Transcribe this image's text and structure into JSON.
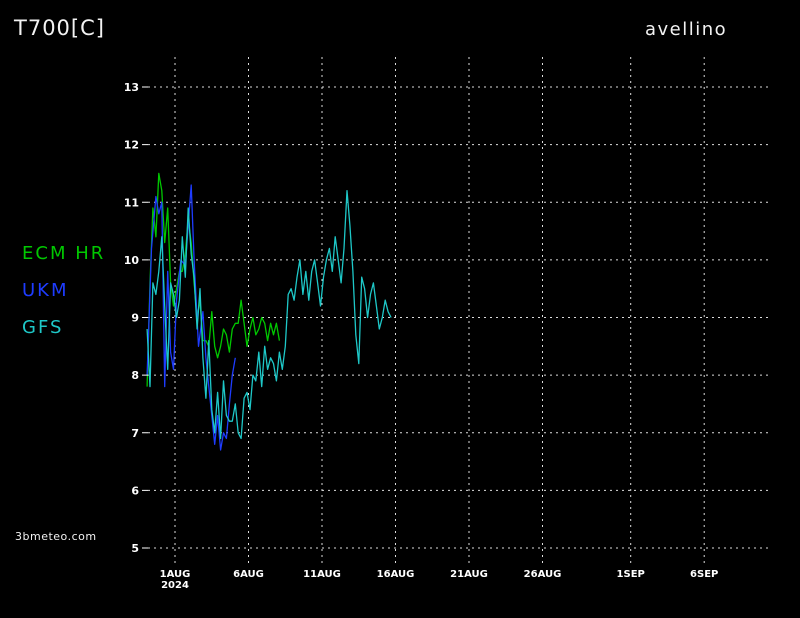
{
  "header": {
    "title": "T700[C]",
    "location": "avellino"
  },
  "footer": {
    "brand": "3bmeteo.com"
  },
  "legend": [
    {
      "label": "ECM  HR",
      "color": "#00c800"
    },
    {
      "label": "UKM",
      "color": "#1e3cff"
    },
    {
      "label": "GFS",
      "color": "#1ec8c8"
    }
  ],
  "chart_data": {
    "type": "line",
    "title": "T700[C]",
    "subtitle": "avellino",
    "ylabel": "",
    "xlabel": "",
    "ylim": [
      5,
      13
    ],
    "y_ticks": [
      5,
      6,
      7,
      8,
      9,
      10,
      11,
      12,
      13
    ],
    "xlim": [
      "2024-07-30",
      "2024-09-07"
    ],
    "x_ticks": [
      {
        "date": "2024-08-01",
        "label": "1AUG",
        "sublabel": "2024"
      },
      {
        "date": "2024-08-06",
        "label": "6AUG"
      },
      {
        "date": "2024-08-11",
        "label": "11AUG"
      },
      {
        "date": "2024-08-16",
        "label": "16AUG"
      },
      {
        "date": "2024-08-21",
        "label": "21AUG"
      },
      {
        "date": "2024-08-26",
        "label": "26AUG"
      },
      {
        "date": "2024-09-01",
        "label": "1SEP"
      },
      {
        "date": "2024-09-06",
        "label": "6SEP"
      }
    ],
    "grid": true,
    "legend_position": "left",
    "series": [
      {
        "name": "ECM  HR",
        "color": "#00c800",
        "x": [
          0.0,
          0.2,
          0.4,
          0.6,
          0.8,
          1.0,
          1.2,
          1.4,
          1.6,
          1.8,
          2.0,
          2.2,
          2.4,
          2.6,
          2.8,
          3.0,
          3.2,
          3.4,
          3.6,
          3.8,
          4.0,
          4.2,
          4.4,
          4.6,
          4.8,
          5.0,
          5.2,
          5.4,
          5.6,
          5.8,
          6.0,
          6.2,
          6.4,
          6.6,
          6.8,
          7.0,
          7.2,
          7.4,
          7.6,
          7.8,
          8.0,
          8.2,
          8.4,
          8.6,
          8.8,
          9.0
        ],
        "y": [
          7.8,
          9.6,
          10.9,
          10.4,
          11.5,
          11.2,
          10.3,
          10.9,
          9.6,
          9.2,
          9.5,
          9.8,
          9.8,
          10.1,
          10.7,
          10.3,
          9.6,
          9.0,
          9.3,
          8.6,
          8.6,
          8.5,
          9.1,
          8.5,
          8.3,
          8.5,
          8.8,
          8.7,
          8.4,
          8.8,
          8.9,
          8.9,
          9.3,
          8.9,
          8.5,
          8.8,
          9.0,
          8.7,
          8.8,
          9.0,
          8.9,
          8.6,
          8.9,
          8.7,
          8.9,
          8.6
        ]
      },
      {
        "name": "UKM",
        "color": "#1e3cff",
        "x": [
          0.0,
          0.3,
          0.6,
          0.8,
          1.0,
          1.2,
          1.4,
          1.6,
          1.8,
          2.0,
          2.3,
          2.6,
          2.8,
          3.0,
          3.2,
          3.5,
          3.8,
          4.0,
          4.2,
          4.4,
          4.6,
          4.8,
          5.0,
          5.2,
          5.4,
          5.6,
          5.8,
          6.0
        ],
        "y": [
          8.0,
          10.2,
          11.1,
          10.8,
          11.0,
          7.8,
          9.8,
          8.4,
          8.1,
          9.3,
          10.0,
          9.9,
          10.6,
          11.3,
          10.0,
          8.5,
          9.1,
          8.3,
          7.8,
          7.3,
          6.8,
          7.3,
          6.7,
          7.0,
          6.9,
          7.5,
          8.0,
          8.3
        ]
      },
      {
        "name": "GFS",
        "color": "#1ec8c8",
        "x": [
          0.0,
          0.2,
          0.4,
          0.6,
          0.8,
          1.0,
          1.2,
          1.4,
          1.6,
          1.8,
          2.0,
          2.2,
          2.4,
          2.6,
          2.8,
          3.0,
          3.2,
          3.4,
          3.6,
          3.8,
          4.0,
          4.2,
          4.4,
          4.6,
          4.8,
          5.0,
          5.2,
          5.4,
          5.6,
          5.8,
          6.0,
          6.2,
          6.4,
          6.6,
          6.8,
          7.0,
          7.2,
          7.4,
          7.6,
          7.8,
          8.0,
          8.2,
          8.4,
          8.6,
          8.8,
          9.0,
          9.2,
          9.4,
          9.6,
          9.8,
          10.0,
          10.2,
          10.4,
          10.6,
          10.8,
          11.0,
          11.2,
          11.4,
          11.6,
          11.8,
          12.0,
          12.2,
          12.4,
          12.6,
          12.8,
          13.0,
          13.2,
          13.4,
          13.6,
          13.8,
          14.0,
          14.2,
          14.4,
          14.6,
          14.8,
          15.0,
          15.2,
          15.4,
          15.6,
          15.8,
          16.0,
          16.2,
          16.4,
          16.6
        ],
        "y": [
          8.8,
          7.8,
          9.6,
          9.4,
          9.8,
          10.4,
          9.2,
          8.1,
          9.6,
          9.4,
          9.0,
          9.3,
          10.4,
          9.7,
          10.9,
          10.1,
          9.7,
          8.8,
          9.5,
          8.3,
          7.6,
          8.6,
          7.4,
          7.0,
          7.7,
          6.9,
          7.9,
          7.3,
          7.2,
          7.2,
          7.5,
          7.0,
          6.9,
          7.6,
          7.7,
          7.4,
          8.0,
          7.9,
          8.4,
          7.8,
          8.5,
          8.1,
          8.3,
          8.2,
          7.9,
          8.4,
          8.1,
          8.5,
          9.4,
          9.5,
          9.3,
          9.7,
          10.0,
          9.4,
          9.8,
          9.3,
          9.8,
          10.0,
          9.6,
          9.2,
          9.7,
          10.0,
          10.2,
          9.8,
          10.4,
          10.0,
          9.6,
          10.2,
          11.2,
          10.6,
          9.8,
          8.7,
          8.2,
          9.7,
          9.5,
          9.0,
          9.4,
          9.6,
          9.2,
          8.8,
          9.0,
          9.3,
          9.1,
          9.0
        ]
      }
    ]
  }
}
